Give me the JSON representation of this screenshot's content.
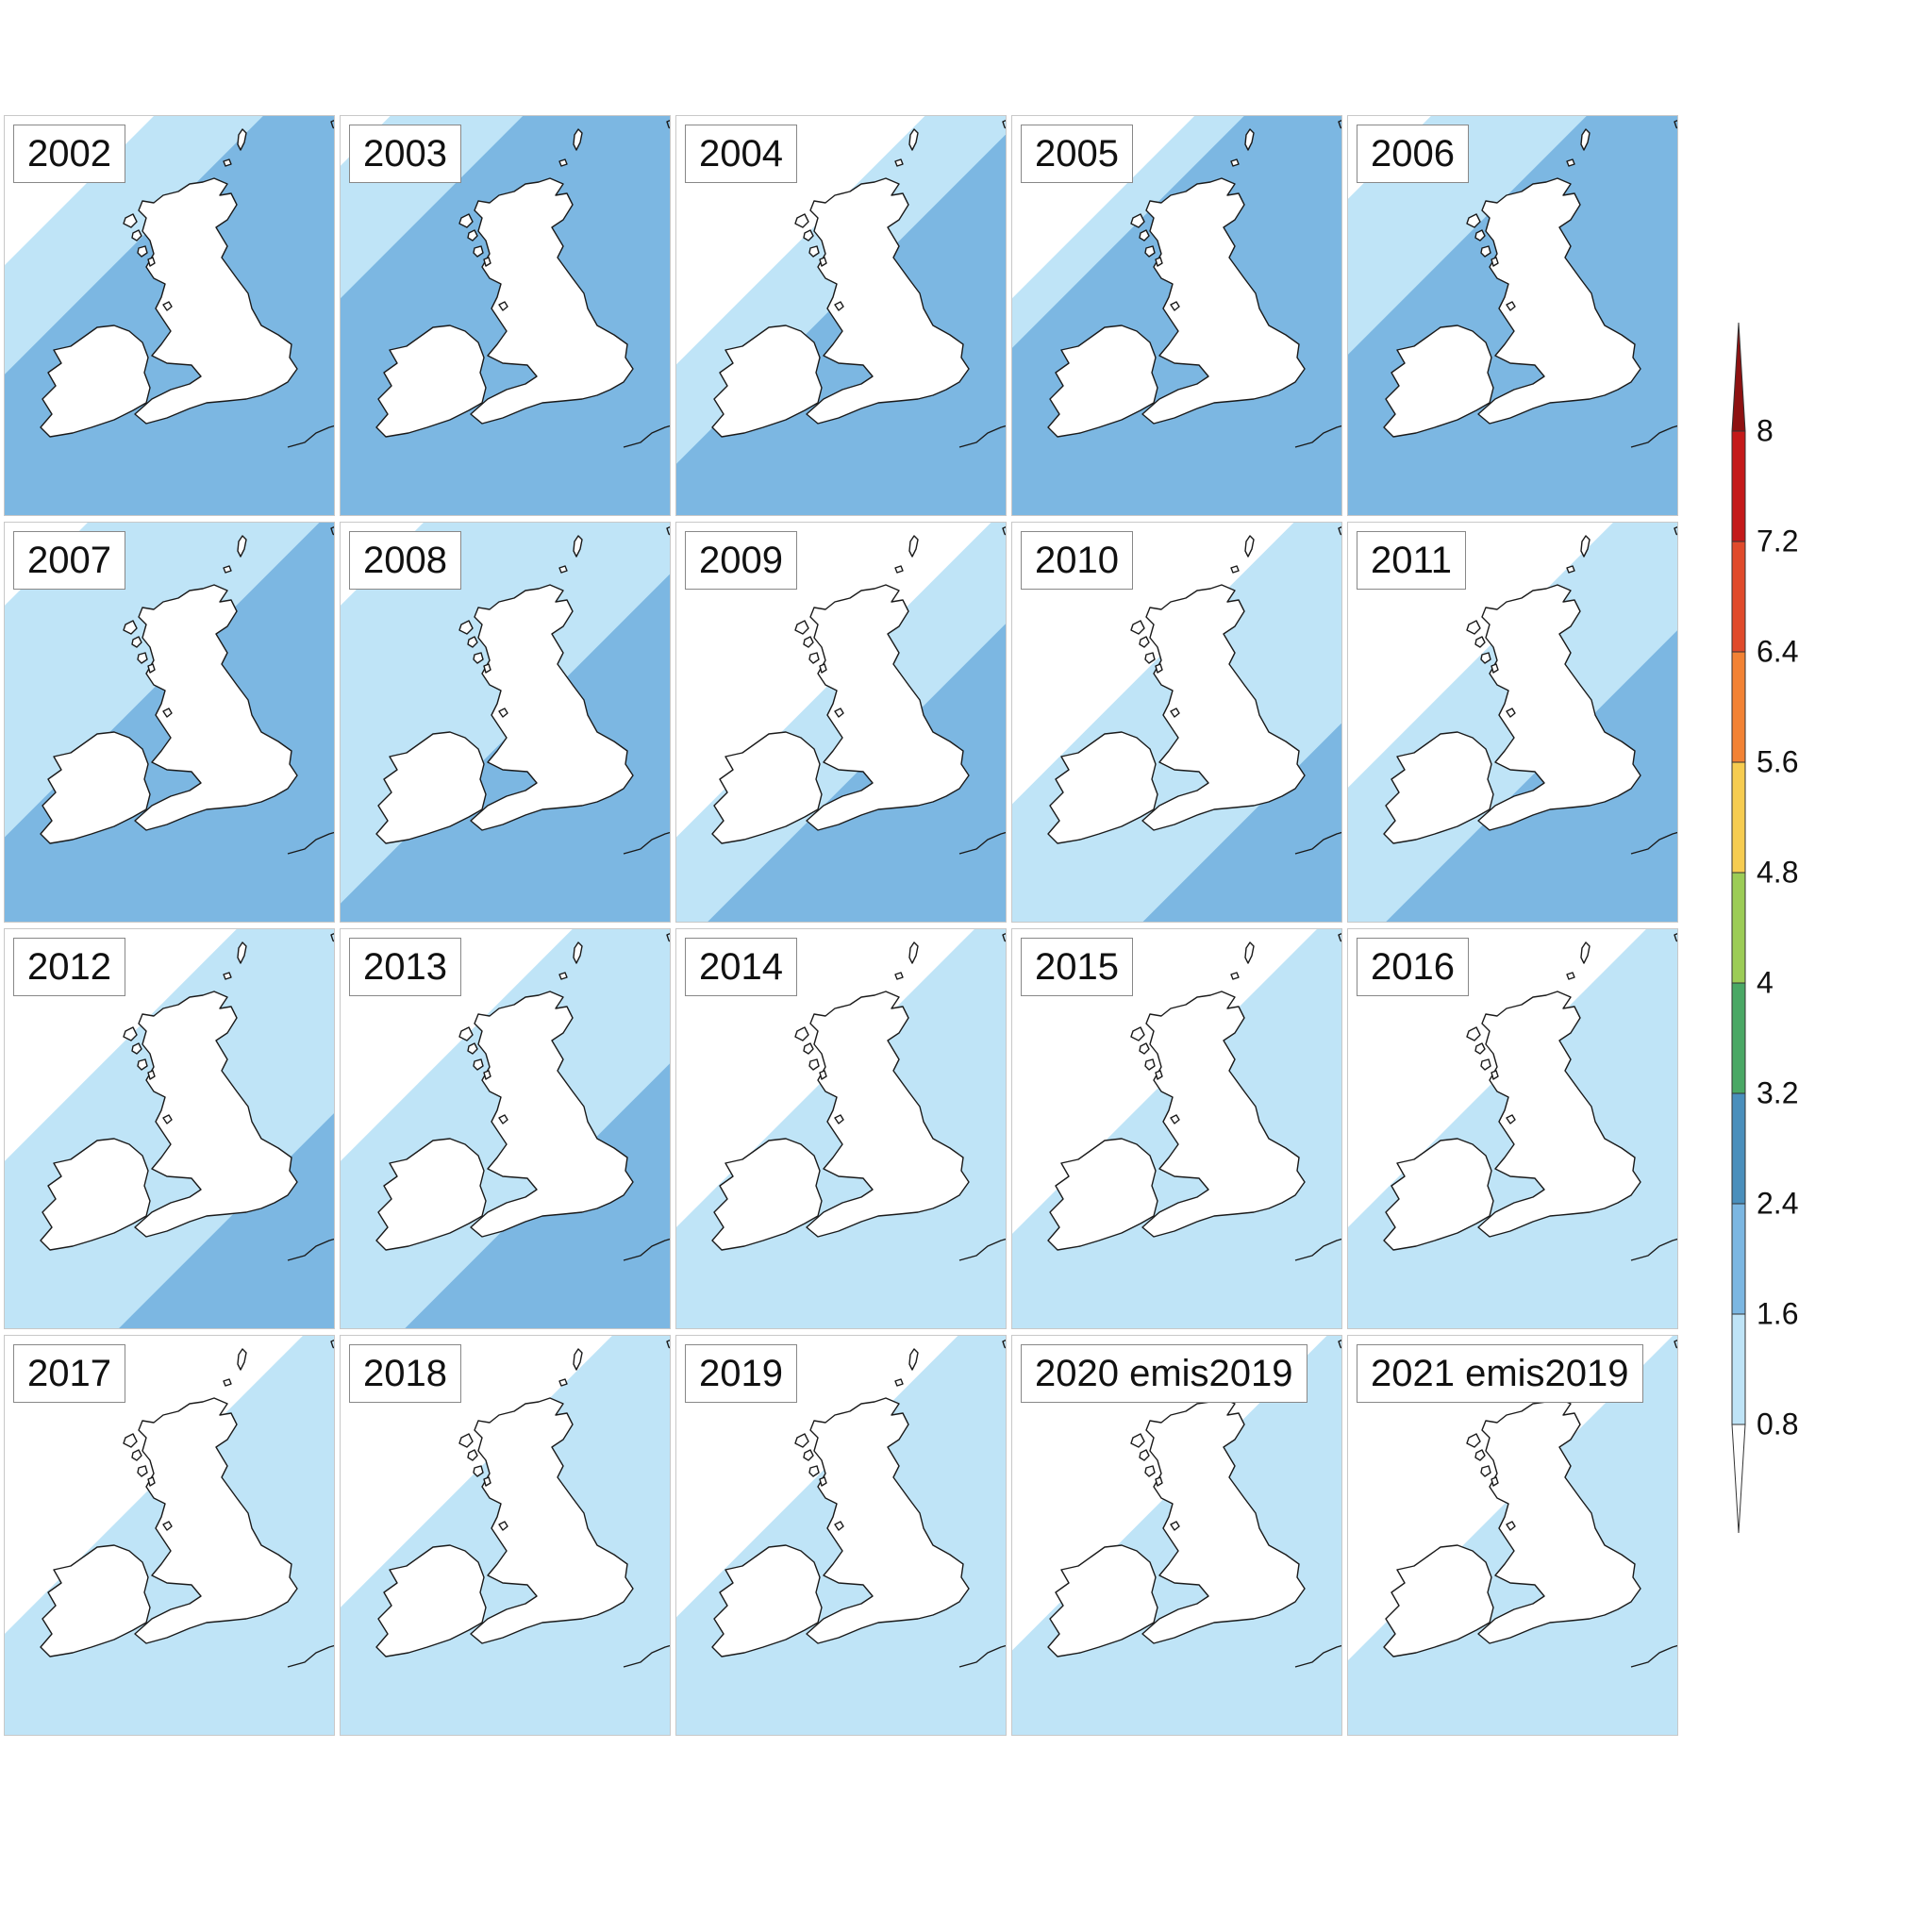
{
  "map": {
    "region": "British Isles",
    "colors": {
      "land": "#ffffff",
      "coastline": "#1a1a1a",
      "bin_0_8_1_6": "#bfe4f7",
      "bin_1_6_2_4": "#7cb7e2"
    },
    "panels": [
      {
        "label": "2002",
        "high_front": 0.78,
        "low_front": 0.45
      },
      {
        "label": "2003",
        "high_front": 0.55,
        "low_front": 0.15
      },
      {
        "label": "2004",
        "high_front": 1.05,
        "low_front": 0.75
      },
      {
        "label": "2005",
        "high_front": 0.7,
        "low_front": 0.55
      },
      {
        "label": "2006",
        "high_front": 0.72,
        "low_front": 0.25
      },
      {
        "label": "2007",
        "high_front": 0.95,
        "low_front": 0.25
      },
      {
        "label": "2008",
        "high_front": 1.15,
        "low_front": 0.25
      },
      {
        "label": "2009",
        "high_front": 1.3,
        "low_front": 0.95
      },
      {
        "label": "2010",
        "high_front": 1.6,
        "low_front": 0.85
      },
      {
        "label": "2011",
        "high_front": 1.32,
        "low_front": 0.8
      },
      {
        "label": "2012",
        "high_front": 1.55,
        "low_front": 0.7
      },
      {
        "label": "2013",
        "high_front": 1.4,
        "low_front": 0.7
      },
      {
        "label": "2014",
        "high_front": 2.0,
        "low_front": 0.9
      },
      {
        "label": "2015",
        "high_front": 2.0,
        "low_front": 0.92
      },
      {
        "label": "2016",
        "high_front": 2.0,
        "low_front": 0.9
      },
      {
        "label": "2017",
        "high_front": 2.0,
        "low_front": 0.9
      },
      {
        "label": "2018",
        "high_front": 2.0,
        "low_front": 0.82
      },
      {
        "label": "2019",
        "high_front": 2.0,
        "low_front": 0.85
      },
      {
        "label": "2020 emis2019",
        "high_front": 2.0,
        "low_front": 0.95
      },
      {
        "label": "2021 emis2019",
        "high_front": 2.0,
        "low_front": 0.98
      }
    ]
  },
  "colorbar": {
    "ticks": [
      "0.8",
      "1.6",
      "2.4",
      "3.2",
      "4",
      "4.8",
      "5.6",
      "6.4",
      "7.2",
      "8"
    ],
    "colors": [
      "#ffffff",
      "#bfe4f7",
      "#7cb7e2",
      "#4a8fbc",
      "#4aa865",
      "#9ccc56",
      "#f6cc50",
      "#f28234",
      "#e04a2b",
      "#c41a1a",
      "#8e1111"
    ]
  }
}
